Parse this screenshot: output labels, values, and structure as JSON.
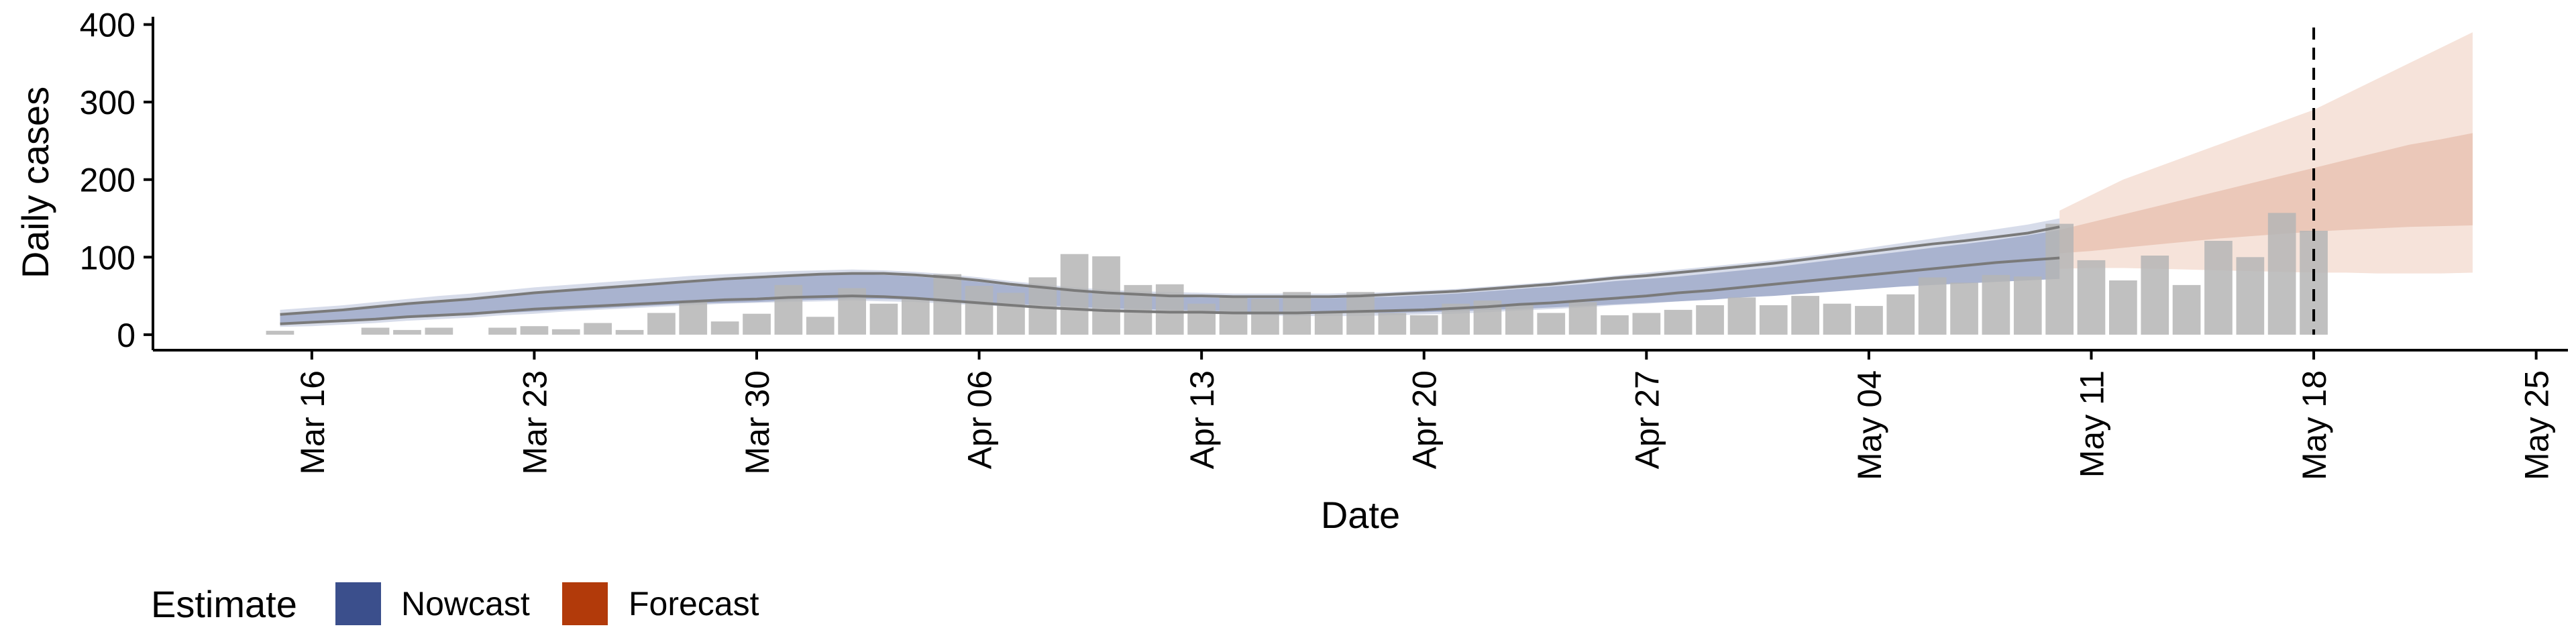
{
  "chart_data": {
    "type": "bar",
    "xlabel": "Date",
    "ylabel": "Daily cases",
    "ylim": [
      -20,
      410
    ],
    "xlim": [
      "2020-03-11",
      "2020-05-26"
    ],
    "x_ticks": [
      "Mar 16",
      "Mar 23",
      "Mar 30",
      "Apr 06",
      "Apr 13",
      "Apr 20",
      "Apr 27",
      "May 04",
      "May 11",
      "May 18",
      "May 25"
    ],
    "x_tick_dates": [
      "2020-03-16",
      "2020-03-23",
      "2020-03-30",
      "2020-04-06",
      "2020-04-13",
      "2020-04-20",
      "2020-04-27",
      "2020-05-04",
      "2020-05-11",
      "2020-05-18",
      "2020-05-25"
    ],
    "y_ticks": [
      0,
      100,
      200,
      300,
      400
    ],
    "grid": false,
    "reference_line": {
      "date": "2020-05-18",
      "style": "dashed"
    },
    "reported_cases": {
      "start_date": "2020-03-15",
      "values": [
        5,
        0,
        0,
        9,
        6,
        9,
        0,
        9,
        11,
        7,
        15,
        6,
        28,
        44,
        17,
        27,
        64,
        23,
        60,
        40,
        46,
        78,
        63,
        54,
        74,
        104,
        101,
        64,
        65,
        40,
        48,
        46,
        55,
        30,
        55,
        28,
        25,
        40,
        44,
        38,
        28,
        42,
        25,
        28,
        32,
        38,
        48,
        38,
        50,
        40,
        37,
        52,
        74,
        67,
        77,
        75,
        143,
        96,
        70,
        102,
        64,
        121,
        100,
        157,
        134
      ]
    },
    "series": [
      {
        "name": "Nowcast",
        "color": "#3b4f8c",
        "start_date": "2020-03-15",
        "end_date": "2020-05-10",
        "lower": [
          15,
          16,
          18,
          20,
          23,
          24,
          25,
          28,
          30,
          32,
          34,
          36,
          38,
          40,
          41,
          42,
          44,
          45,
          46,
          46,
          45,
          44,
          42,
          40,
          38,
          36,
          34,
          33,
          32,
          31,
          30,
          29,
          28,
          28,
          28,
          28,
          29,
          30,
          32,
          33,
          35,
          37,
          39,
          41,
          43,
          45,
          48,
          50,
          53,
          56,
          59,
          62,
          64,
          66,
          68,
          70,
          72
        ],
        "upper": [
          27,
          30,
          33,
          36,
          40,
          43,
          46,
          50,
          54,
          57,
          60,
          63,
          66,
          69,
          72,
          73,
          75,
          77,
          78,
          77,
          75,
          72,
          68,
          63,
          59,
          55,
          52,
          50,
          49,
          48,
          47,
          47,
          47,
          47,
          48,
          49,
          51,
          53,
          56,
          59,
          62,
          65,
          69,
          72,
          75,
          79,
          83,
          87,
          92,
          97,
          102,
          107,
          112,
          117,
          122,
          128,
          135
        ],
        "outer_lower": [
          10,
          11,
          13,
          15,
          18,
          20,
          22,
          25,
          27,
          30,
          32,
          34,
          36,
          38,
          40,
          41,
          42,
          43,
          44,
          43,
          42,
          40,
          38,
          36,
          34,
          32,
          30,
          29,
          28,
          27,
          26,
          25,
          24,
          24,
          24,
          25,
          26,
          27,
          29,
          31,
          33,
          35,
          38,
          40,
          43,
          46,
          50,
          54,
          58,
          62,
          66,
          70,
          74,
          78,
          82,
          86,
          90
        ],
        "outer_upper": [
          32,
          35,
          38,
          42,
          46,
          50,
          53,
          57,
          61,
          64,
          67,
          70,
          73,
          76,
          78,
          80,
          82,
          83,
          84,
          83,
          81,
          78,
          74,
          69,
          65,
          61,
          58,
          56,
          55,
          54,
          53,
          53,
          53,
          53,
          54,
          55,
          57,
          59,
          62,
          65,
          68,
          72,
          76,
          80,
          84,
          88,
          92,
          96,
          101,
          106,
          112,
          118,
          124,
          130,
          136,
          142,
          150
        ],
        "median_lower": [
          14,
          16,
          18,
          20,
          23,
          25,
          27,
          30,
          33,
          35,
          37,
          39,
          41,
          43,
          45,
          46,
          48,
          49,
          50,
          49,
          47,
          44,
          41,
          38,
          35,
          33,
          31,
          30,
          29,
          29,
          28,
          28,
          28,
          29,
          30,
          31,
          32,
          34,
          36,
          39,
          41,
          44,
          47,
          50,
          54,
          57,
          61,
          65,
          69,
          73,
          77,
          81,
          85,
          89,
          93,
          96,
          99
        ],
        "median_upper": [
          26,
          29,
          32,
          36,
          40,
          43,
          46,
          50,
          54,
          57,
          60,
          63,
          66,
          69,
          72,
          74,
          76,
          78,
          79,
          79,
          77,
          74,
          70,
          65,
          61,
          57,
          54,
          52,
          50,
          50,
          49,
          49,
          49,
          49,
          50,
          52,
          54,
          56,
          59,
          62,
          65,
          69,
          73,
          76,
          80,
          84,
          88,
          92,
          97,
          102,
          107,
          112,
          117,
          121,
          126,
          131,
          139
        ]
      },
      {
        "name": "Forecast",
        "color": "#b23a0a",
        "start_date": "2020-05-10",
        "end_date": "2020-05-23",
        "lower": [
          105,
          108,
          112,
          116,
          120,
          124,
          127,
          130,
          133,
          135,
          137,
          139,
          140,
          141
        ],
        "upper": [
          135,
          145,
          155,
          165,
          175,
          185,
          195,
          205,
          215,
          225,
          235,
          245,
          252,
          260
        ],
        "outer_lower": [
          85,
          86,
          86,
          85,
          84,
          83,
          82,
          81,
          80,
          80,
          79,
          79,
          79,
          80
        ],
        "outer_upper": [
          160,
          180,
          200,
          215,
          230,
          245,
          260,
          275,
          290,
          310,
          330,
          350,
          370,
          390
        ]
      }
    ],
    "legend": {
      "title": "Estimate",
      "position": "bottom-left",
      "entries": [
        "Nowcast",
        "Forecast"
      ]
    }
  },
  "colors": {
    "bars": "#b5b5b5",
    "nowcast_inner": "#a9b3cf",
    "nowcast_outer": "#d7dcea",
    "forecast_inner": "#ebc8b9",
    "forecast_outer": "#f6e3da",
    "median_lines": "#7a7a7a",
    "axis": "#000000"
  }
}
